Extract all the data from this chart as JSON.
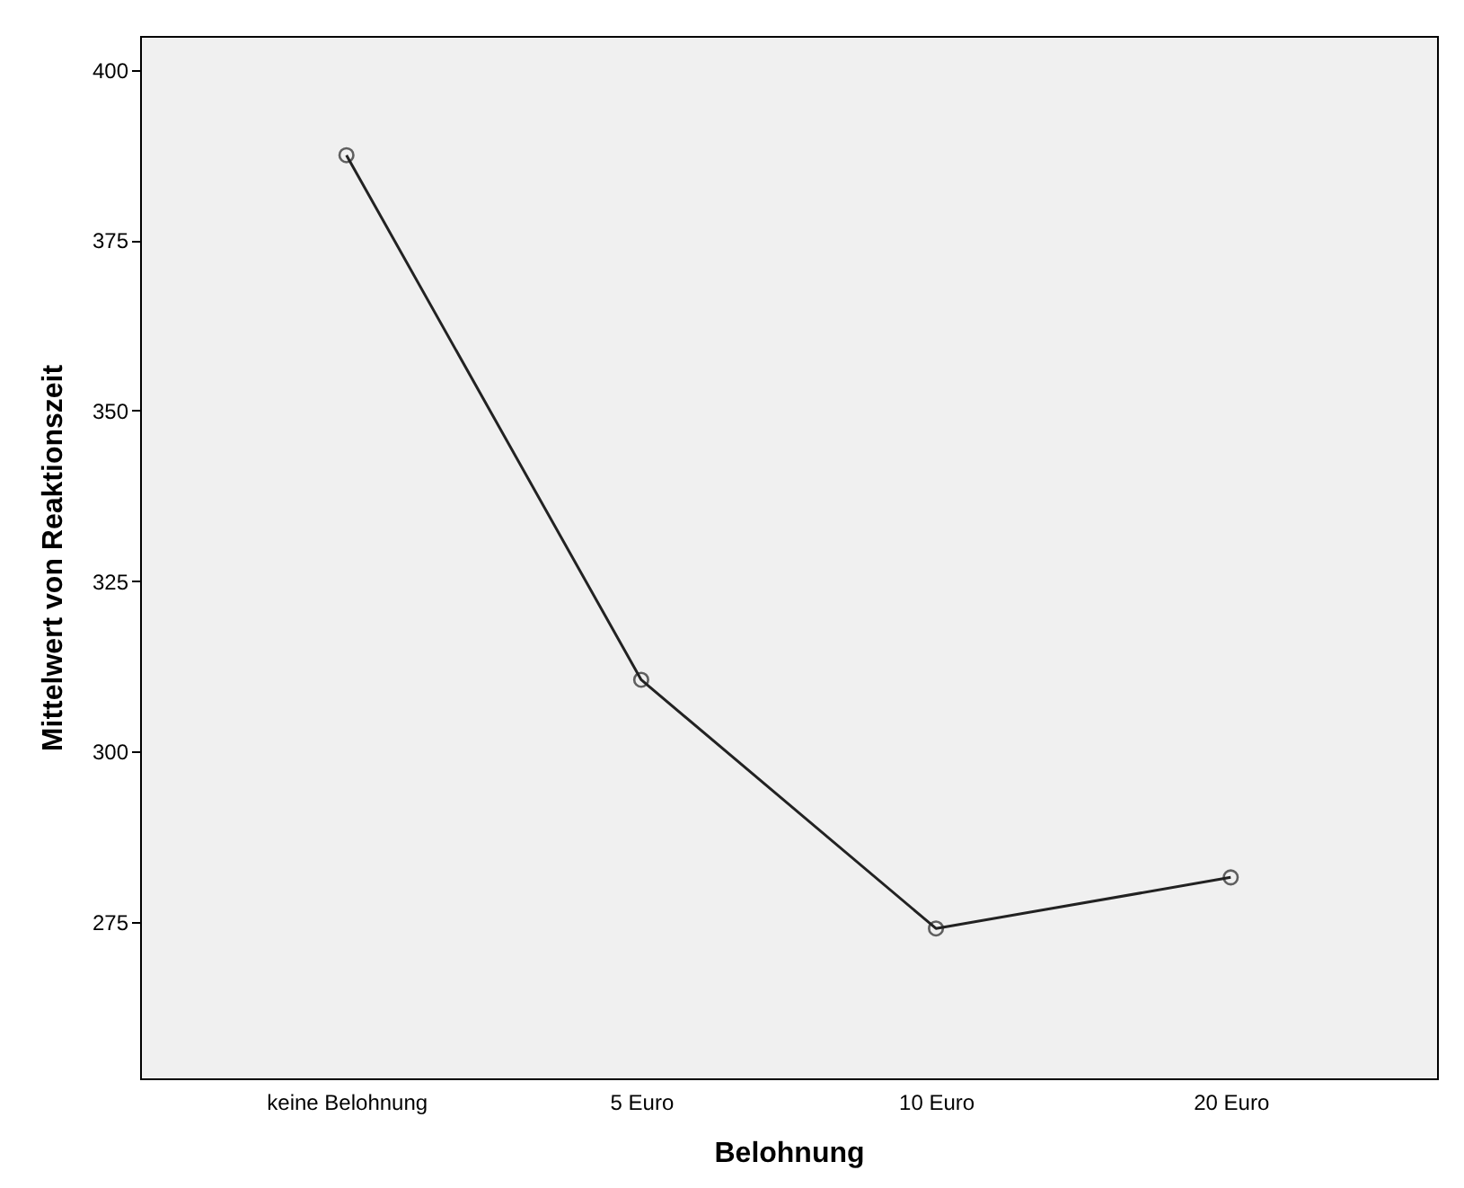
{
  "chart_data": {
    "type": "line",
    "xlabel": "Belohnung",
    "ylabel": "Mittelwert von Reaktionszeit",
    "categories": [
      "keine Belohnung",
      "5 Euro",
      "10 Euro",
      "20 Euro"
    ],
    "series": [
      {
        "color": "#222222",
        "values": [
          387.5,
          310.5,
          274,
          281.5
        ]
      }
    ],
    "ylim": [
      252,
      405
    ],
    "yticks": [
      275,
      300,
      325,
      350,
      375,
      400
    ],
    "grid": false,
    "marker": "circle",
    "line_style": "solid"
  }
}
